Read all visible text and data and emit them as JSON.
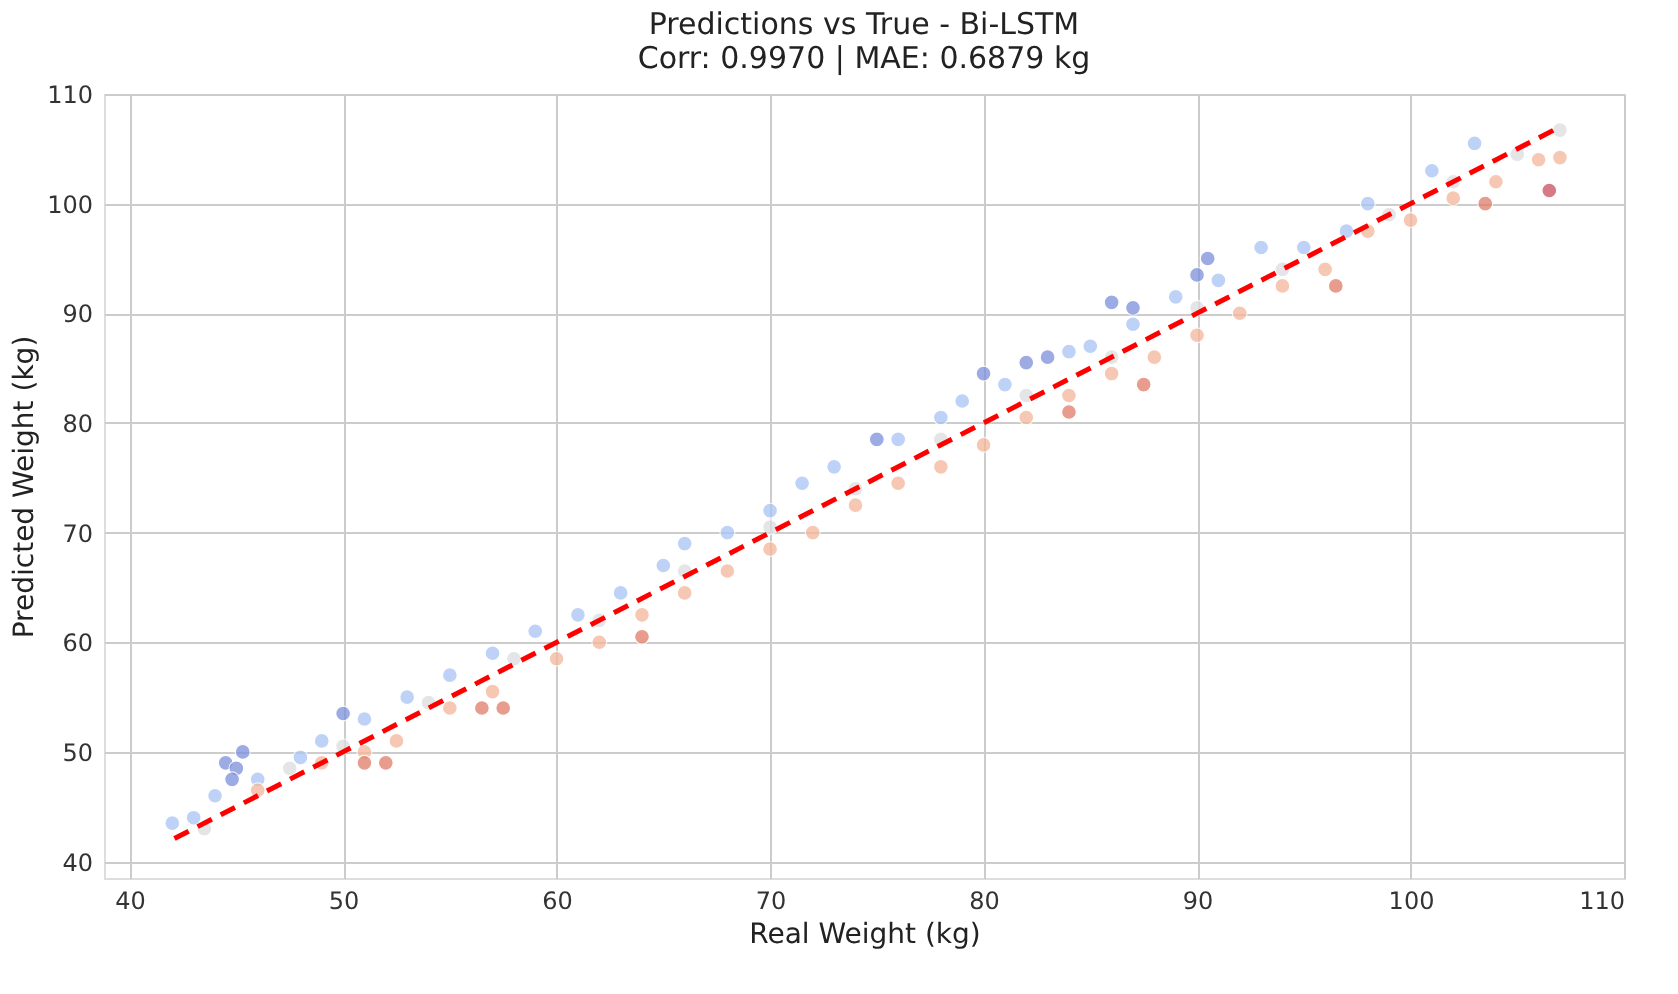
{
  "chart_data": {
    "type": "scatter",
    "title": "Predictions vs True - Bi-LSTM",
    "subtitle": "Corr: 0.9970 | MAE: 0.6879 kg",
    "xlabel": "Real Weight (kg)",
    "ylabel": "Predicted Weight (kg)",
    "xlim": [
      38.8,
      110
    ],
    "ylim": [
      38.5,
      110
    ],
    "xticks": [
      40,
      50,
      60,
      70,
      80,
      90,
      100,
      110
    ],
    "yticks": [
      40,
      50,
      60,
      70,
      80,
      90,
      100,
      110
    ],
    "grid": true,
    "marker": "circle",
    "series": [
      {
        "type": "scatter",
        "color": "#a9c4f5",
        "x": [
          42,
          43,
          44,
          46,
          48,
          49,
          51,
          53,
          55,
          57,
          59,
          61,
          63,
          65,
          66,
          68,
          70,
          71.5,
          73,
          76,
          78,
          79,
          81,
          84,
          85,
          87,
          89,
          91,
          93,
          95,
          97,
          98,
          101,
          103
        ],
        "values": [
          43.5,
          44,
          46,
          47.5,
          49.5,
          51,
          53,
          55,
          57,
          59,
          61,
          62.5,
          64.5,
          67,
          69,
          70,
          72,
          74.5,
          76,
          78.5,
          80.5,
          82,
          83.5,
          86.5,
          87,
          89,
          91.5,
          93,
          96,
          96,
          97.5,
          100,
          103,
          105.5
        ]
      },
      {
        "type": "scatter",
        "color": "#dcdde0",
        "x": [
          43.5,
          47.5,
          50,
          54,
          58,
          62,
          66,
          70,
          74,
          78,
          82,
          86,
          90,
          94,
          99,
          102,
          105,
          107
        ],
        "values": [
          43,
          48.5,
          50.5,
          54.5,
          58.5,
          62,
          66.5,
          70.5,
          74,
          78.5,
          82.5,
          86,
          90.5,
          94,
          99,
          102,
          104.5,
          106.7
        ]
      },
      {
        "type": "scatter",
        "color": "#f4b69b",
        "x": [
          46,
          49,
          51,
          52.5,
          55,
          57,
          60,
          62,
          64,
          66,
          68,
          70,
          72,
          74,
          76,
          78,
          80,
          82,
          84,
          86,
          88,
          90,
          92,
          94,
          96,
          98,
          100,
          102,
          104,
          106,
          107
        ],
        "values": [
          46.5,
          49,
          50,
          51,
          54,
          55.5,
          58.5,
          60,
          62.5,
          64.5,
          66.5,
          68.5,
          70,
          72.5,
          74.5,
          76,
          78,
          80.5,
          82.5,
          84.5,
          86,
          88,
          90,
          92.5,
          94,
          97.5,
          98.5,
          100.5,
          102,
          104,
          104.2
        ]
      },
      {
        "type": "scatter",
        "color": "#7b8fdc",
        "x": [
          44.5,
          45,
          45.3,
          44.8,
          50,
          75,
          80,
          82,
          83,
          86,
          87,
          90,
          90.5
        ],
        "values": [
          49,
          48.5,
          50,
          47.5,
          53.5,
          78.5,
          84.5,
          85.5,
          86,
          91,
          90.5,
          93.5,
          95
        ]
      },
      {
        "type": "scatter",
        "color": "#e07b67",
        "x": [
          51,
          52,
          56.5,
          57.5,
          64,
          84,
          87.5,
          96.5,
          103.5
        ],
        "values": [
          49,
          49,
          54,
          54,
          60.5,
          81,
          83.5,
          92.5,
          100
        ]
      },
      {
        "type": "scatter",
        "color": "#c9505e",
        "x": [
          106.5
        ],
        "values": [
          101.2
        ]
      },
      {
        "type": "line",
        "color": "#ff0000",
        "line_style": "dashed",
        "marker": "none",
        "x": [
          42.1,
          107
        ],
        "values": [
          42.1,
          107
        ]
      }
    ]
  }
}
